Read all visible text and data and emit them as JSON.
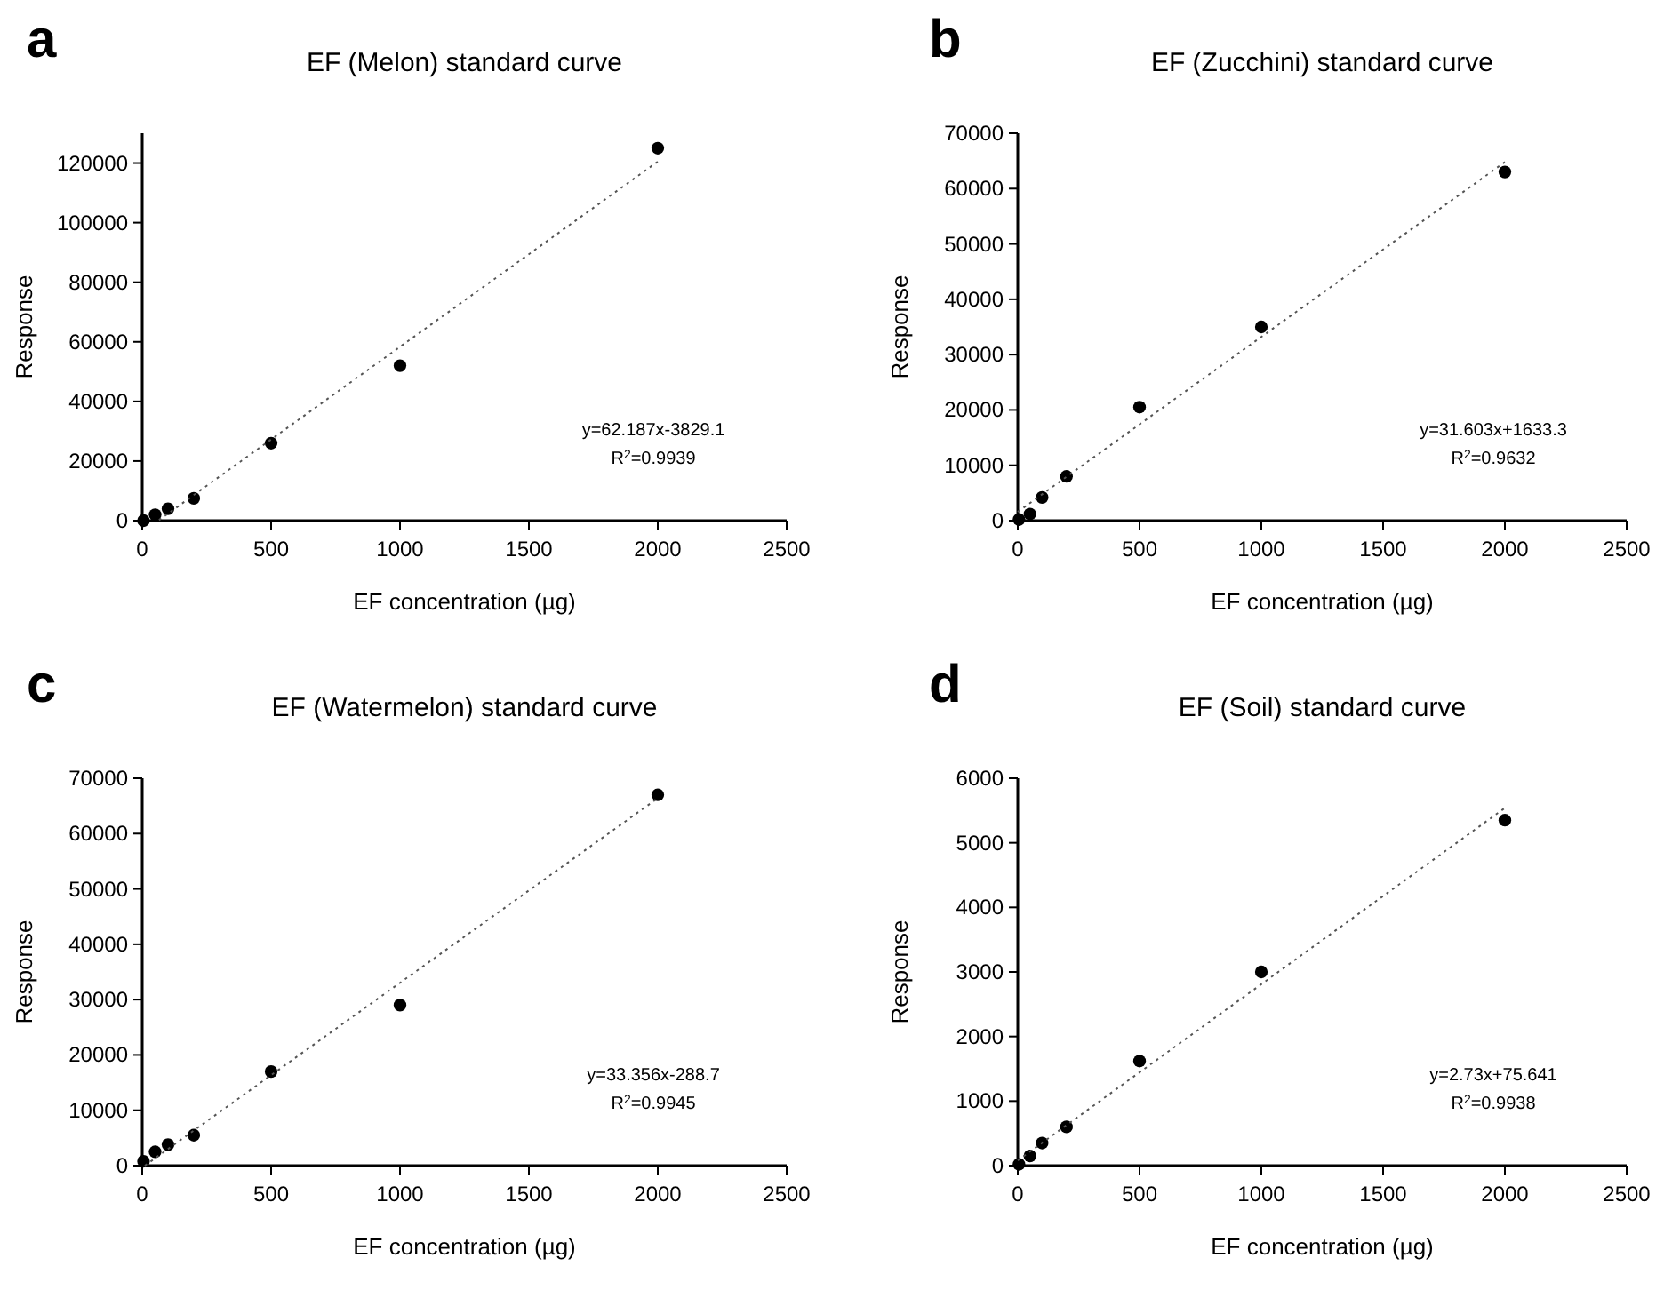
{
  "chart_data": [
    {
      "type": "scatter",
      "title": "EF (Melon) standard curve",
      "xlabel": "EF concentration (µg)",
      "ylabel": "Response",
      "annotations": [
        "a",
        "y=62.187x-3829.1",
        "R$^{2}$=0.9939"
      ],
      "xlim": [
        0,
        2500
      ],
      "xticks": [
        0,
        500,
        1000,
        1500,
        2000,
        2500
      ],
      "ylim": [
        0,
        130000
      ],
      "yticks": [
        0,
        20000,
        40000,
        60000,
        80000,
        100000,
        120000
      ],
      "series": [
        {
          "color": "#000000",
          "marker": "circle",
          "x": [
            5,
            50,
            100,
            200,
            500,
            1000,
            2000
          ],
          "values": [
            0,
            2000,
            4000,
            7500,
            26000,
            52000,
            125000
          ]
        },
        {
          "type": "line",
          "color": "#555555",
          "marker": "none",
          "line_style": "dotted",
          "x": [
            65,
            2000
          ],
          "values": [
            200,
            120500
          ]
        }
      ]
    },
    {
      "type": "scatter",
      "title": "EF (Zucchini) standard curve",
      "xlabel": "EF concentration (µg)",
      "ylabel": "Response",
      "annotations": [
        "b",
        "y=31.603x+1633.3",
        "R$^{2}$=0.9632"
      ],
      "xlim": [
        0,
        2500
      ],
      "xticks": [
        0,
        500,
        1000,
        1500,
        2000,
        2500
      ],
      "ylim": [
        0,
        70000
      ],
      "yticks": [
        0,
        10000,
        20000,
        30000,
        40000,
        50000,
        60000,
        70000
      ],
      "series": [
        {
          "color": "#000000",
          "marker": "circle",
          "x": [
            5,
            50,
            100,
            200,
            500,
            1000,
            2000
          ],
          "values": [
            200,
            1200,
            4200,
            8000,
            20500,
            35000,
            63000
          ]
        },
        {
          "type": "line",
          "color": "#555555",
          "marker": "none",
          "line_style": "dotted",
          "x": [
            0,
            2000
          ],
          "values": [
            1600,
            64800
          ]
        }
      ]
    },
    {
      "type": "scatter",
      "title": "EF (Watermelon) standard curve",
      "xlabel": "EF concentration (µg)",
      "ylabel": "Response",
      "annotations": [
        "c",
        "y=33.356x-288.7",
        "R$^{2}$=0.9945"
      ],
      "xlim": [
        0,
        2500
      ],
      "xticks": [
        0,
        500,
        1000,
        1500,
        2000,
        2500
      ],
      "ylim": [
        0,
        70000
      ],
      "yticks": [
        0,
        10000,
        20000,
        30000,
        40000,
        50000,
        60000,
        70000
      ],
      "series": [
        {
          "color": "#000000",
          "marker": "circle",
          "x": [
            5,
            50,
            100,
            200,
            500,
            1000,
            2000
          ],
          "values": [
            800,
            2500,
            3800,
            5500,
            17000,
            29000,
            67000
          ]
        },
        {
          "type": "line",
          "color": "#555555",
          "marker": "none",
          "line_style": "dotted",
          "x": [
            10,
            2000
          ],
          "values": [
            0,
            66400
          ]
        }
      ]
    },
    {
      "type": "scatter",
      "title": "EF (Soil) standard curve",
      "xlabel": "EF concentration (µg)",
      "ylabel": "Response",
      "annotations": [
        "d",
        "y=2.73x+75.641",
        "R$^{2}$=0.9938"
      ],
      "xlim": [
        0,
        2500
      ],
      "xticks": [
        0,
        500,
        1000,
        1500,
        2000,
        2500
      ],
      "ylim": [
        0,
        6000
      ],
      "yticks": [
        0,
        1000,
        2000,
        3000,
        4000,
        5000,
        6000
      ],
      "series": [
        {
          "color": "#000000",
          "marker": "circle",
          "x": [
            5,
            50,
            100,
            200,
            500,
            1000,
            2000
          ],
          "values": [
            20,
            150,
            350,
            600,
            1620,
            3000,
            5350
          ]
        },
        {
          "type": "line",
          "color": "#555555",
          "marker": "none",
          "line_style": "dotted",
          "x": [
            0,
            2000
          ],
          "values": [
            80,
            5540
          ]
        }
      ]
    }
  ]
}
